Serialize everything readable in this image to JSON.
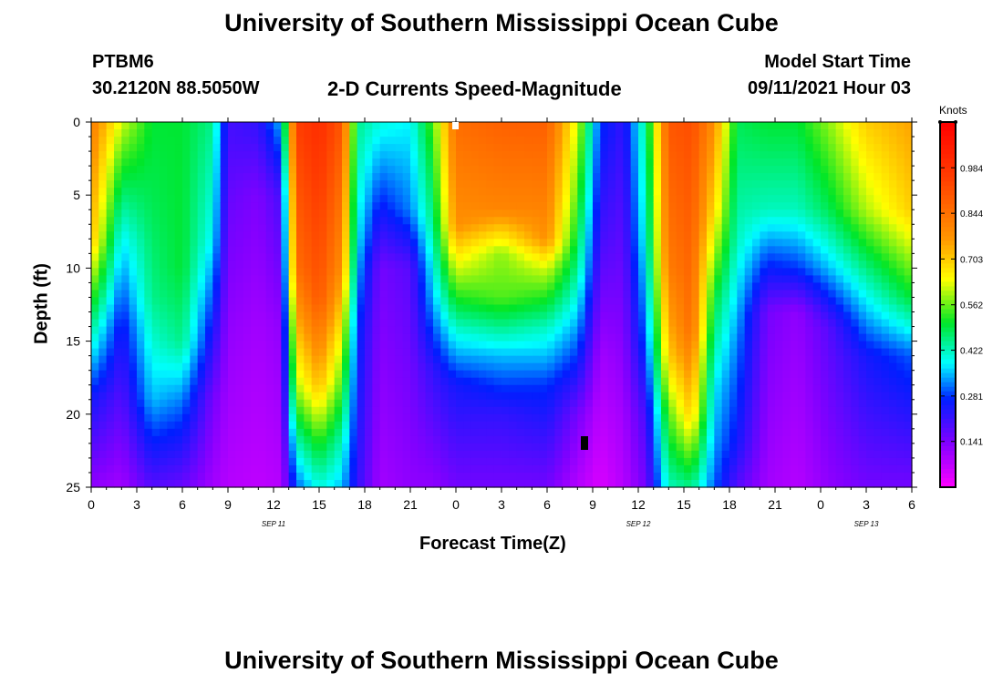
{
  "header": {
    "title": "University of Southern Mississippi Ocean Cube",
    "station": "PTBM6",
    "coords": "30.2120N  88.5050W",
    "plot_title": "2-D Currents Speed-Magnitude",
    "model_label": "Model Start Time",
    "model_time": "09/11/2021 Hour 03"
  },
  "footer": {
    "title": "University of Southern Mississippi Ocean Cube"
  },
  "chart_data": {
    "type": "heatmap",
    "title": "2-D Currents Speed-Magnitude",
    "xlabel": "Forecast Time(Z)",
    "ylabel": "Depth (ft)",
    "x_tick_labels": [
      "0",
      "3",
      "6",
      "9",
      "12",
      "15",
      "18",
      "21",
      "0",
      "3",
      "6",
      "9",
      "12",
      "15",
      "18",
      "21",
      "0",
      "3",
      "6"
    ],
    "x_hours": [
      0,
      3,
      6,
      9,
      12,
      15,
      18,
      21,
      24,
      27,
      30,
      33,
      36,
      39,
      42,
      45,
      48,
      51,
      54
    ],
    "date_labels": [
      {
        "label": "SEP 11",
        "hour": 12
      },
      {
        "label": "SEP 12",
        "hour": 36
      },
      {
        "label": "SEP 13",
        "hour": 51
      }
    ],
    "y_ticks": [
      0,
      5,
      10,
      15,
      20,
      25
    ],
    "y_tick_labels": [
      "0",
      "5",
      "10",
      "15",
      "20",
      "25"
    ],
    "xlim": [
      0,
      54
    ],
    "ylim": [
      0,
      25
    ],
    "colorbar": {
      "unit": "Knots",
      "tick_labels": [
        "0.984",
        "0.844",
        "0.703",
        "0.562",
        "0.422",
        "0.281",
        "0.141"
      ],
      "tick_values": [
        0.984,
        0.844,
        0.703,
        0.562,
        0.422,
        0.281,
        0.141
      ],
      "range": [
        0,
        1.125
      ]
    },
    "time_columns": [
      {
        "hour": 0,
        "profile": [
          [
            0,
            0.82
          ],
          [
            8,
            0.72
          ],
          [
            14,
            0.45
          ],
          [
            19,
            0.25
          ],
          [
            25,
            0.12
          ]
        ]
      },
      {
        "hour": 2,
        "profile": [
          [
            0,
            0.62
          ],
          [
            3,
            0.52
          ],
          [
            8,
            0.38
          ],
          [
            14,
            0.25
          ],
          [
            25,
            0.1
          ]
        ]
      },
      {
        "hour": 4,
        "profile": [
          [
            0,
            0.5
          ],
          [
            6,
            0.48
          ],
          [
            12,
            0.45
          ],
          [
            19,
            0.35
          ],
          [
            25,
            0.18
          ]
        ]
      },
      {
        "hour": 6,
        "profile": [
          [
            0,
            0.5
          ],
          [
            10,
            0.5
          ],
          [
            15,
            0.45
          ],
          [
            19,
            0.32
          ],
          [
            25,
            0.16
          ]
        ]
      },
      {
        "hour": 8,
        "profile": [
          [
            0,
            0.45
          ],
          [
            8,
            0.38
          ],
          [
            14,
            0.25
          ],
          [
            19,
            0.15
          ],
          [
            25,
            0.1
          ]
        ]
      },
      {
        "hour": 9,
        "profile": [
          [
            0,
            0.2
          ],
          [
            6,
            0.16
          ],
          [
            14,
            0.12
          ],
          [
            25,
            0.08
          ]
        ]
      },
      {
        "hour": 11,
        "profile": [
          [
            0,
            0.22
          ],
          [
            5,
            0.14
          ],
          [
            14,
            0.1
          ],
          [
            25,
            0.07
          ]
        ]
      },
      {
        "hour": 12.5,
        "profile": [
          [
            0,
            0.35
          ],
          [
            5,
            0.2
          ],
          [
            14,
            0.12
          ],
          [
            25,
            0.08
          ]
        ]
      },
      {
        "hour": 13.5,
        "profile": [
          [
            0,
            0.95
          ],
          [
            10,
            0.85
          ],
          [
            18,
            0.6
          ],
          [
            22,
            0.42
          ],
          [
            25,
            0.3
          ]
        ]
      },
      {
        "hour": 15,
        "profile": [
          [
            0,
            1.0
          ],
          [
            12,
            0.9
          ],
          [
            18,
            0.72
          ],
          [
            22,
            0.52
          ],
          [
            25,
            0.4
          ]
        ]
      },
      {
        "hour": 16.5,
        "profile": [
          [
            0,
            0.9
          ],
          [
            10,
            0.78
          ],
          [
            16,
            0.6
          ],
          [
            22,
            0.42
          ],
          [
            25,
            0.35
          ]
        ]
      },
      {
        "hour": 17.5,
        "profile": [
          [
            0,
            0.45
          ],
          [
            8,
            0.38
          ],
          [
            14,
            0.28
          ],
          [
            25,
            0.22
          ]
        ]
      },
      {
        "hour": 19,
        "profile": [
          [
            0,
            0.4
          ],
          [
            5,
            0.28
          ],
          [
            10,
            0.15
          ],
          [
            25,
            0.1
          ]
        ]
      },
      {
        "hour": 21,
        "profile": [
          [
            0,
            0.38
          ],
          [
            6,
            0.32
          ],
          [
            10,
            0.18
          ],
          [
            25,
            0.12
          ]
        ]
      },
      {
        "hour": 22.5,
        "profile": [
          [
            0,
            0.55
          ],
          [
            7,
            0.45
          ],
          [
            12,
            0.35
          ],
          [
            17,
            0.22
          ],
          [
            25,
            0.12
          ]
        ]
      },
      {
        "hour": 24,
        "profile": [
          [
            0,
            0.85
          ],
          [
            7,
            0.78
          ],
          [
            10,
            0.62
          ],
          [
            14,
            0.42
          ],
          [
            18,
            0.25
          ],
          [
            25,
            0.15
          ]
        ]
      },
      {
        "hour": 27,
        "profile": [
          [
            0,
            0.88
          ],
          [
            6,
            0.8
          ],
          [
            9,
            0.58
          ],
          [
            12,
            0.55
          ],
          [
            16,
            0.35
          ],
          [
            20,
            0.22
          ],
          [
            25,
            0.15
          ]
        ]
      },
      {
        "hour": 30,
        "profile": [
          [
            0,
            0.88
          ],
          [
            8,
            0.78
          ],
          [
            10,
            0.62
          ],
          [
            14,
            0.42
          ],
          [
            18,
            0.28
          ],
          [
            25,
            0.15
          ]
        ]
      },
      {
        "hour": 32,
        "profile": [
          [
            0,
            0.62
          ],
          [
            5,
            0.55
          ],
          [
            10,
            0.45
          ],
          [
            16,
            0.28
          ],
          [
            20,
            0.15
          ],
          [
            25,
            0.08
          ]
        ]
      },
      {
        "hour": 33.5,
        "profile": [
          [
            0,
            0.28
          ],
          [
            8,
            0.2
          ],
          [
            16,
            0.1
          ],
          [
            25,
            0.04
          ]
        ]
      },
      {
        "hour": 35,
        "profile": [
          [
            0,
            0.22
          ],
          [
            10,
            0.16
          ],
          [
            20,
            0.1
          ],
          [
            25,
            0.08
          ]
        ]
      },
      {
        "hour": 36.5,
        "profile": [
          [
            0,
            0.45
          ],
          [
            8,
            0.4
          ],
          [
            15,
            0.3
          ],
          [
            20,
            0.2
          ],
          [
            25,
            0.15
          ]
        ]
      },
      {
        "hour": 38,
        "profile": [
          [
            0,
            0.9
          ],
          [
            10,
            0.82
          ],
          [
            16,
            0.7
          ],
          [
            20,
            0.55
          ],
          [
            25,
            0.42
          ]
        ]
      },
      {
        "hour": 39.5,
        "profile": [
          [
            0,
            0.92
          ],
          [
            14,
            0.85
          ],
          [
            20,
            0.7
          ],
          [
            23,
            0.55
          ],
          [
            25,
            0.45
          ]
        ]
      },
      {
        "hour": 41,
        "profile": [
          [
            0,
            0.78
          ],
          [
            6,
            0.68
          ],
          [
            12,
            0.5
          ],
          [
            18,
            0.38
          ],
          [
            25,
            0.3
          ]
        ]
      },
      {
        "hour": 42.5,
        "profile": [
          [
            0,
            0.48
          ],
          [
            8,
            0.42
          ],
          [
            15,
            0.32
          ],
          [
            22,
            0.25
          ],
          [
            25,
            0.18
          ]
        ]
      },
      {
        "hour": 44.5,
        "profile": [
          [
            0,
            0.5
          ],
          [
            6,
            0.42
          ],
          [
            9,
            0.3
          ],
          [
            13,
            0.15
          ],
          [
            25,
            0.1
          ]
        ]
      },
      {
        "hour": 46.5,
        "profile": [
          [
            0,
            0.5
          ],
          [
            6,
            0.42
          ],
          [
            10,
            0.28
          ],
          [
            13,
            0.12
          ],
          [
            25,
            0.08
          ]
        ]
      },
      {
        "hour": 48.5,
        "profile": [
          [
            0,
            0.58
          ],
          [
            6,
            0.48
          ],
          [
            10,
            0.35
          ],
          [
            14,
            0.18
          ],
          [
            25,
            0.12
          ]
        ]
      },
      {
        "hour": 51,
        "profile": [
          [
            0,
            0.7
          ],
          [
            6,
            0.6
          ],
          [
            11,
            0.42
          ],
          [
            16,
            0.25
          ],
          [
            25,
            0.15
          ]
        ]
      },
      {
        "hour": 54,
        "profile": [
          [
            0,
            0.75
          ],
          [
            6,
            0.7
          ],
          [
            12,
            0.5
          ],
          [
            16,
            0.3
          ],
          [
            25,
            0.15
          ]
        ]
      }
    ]
  }
}
